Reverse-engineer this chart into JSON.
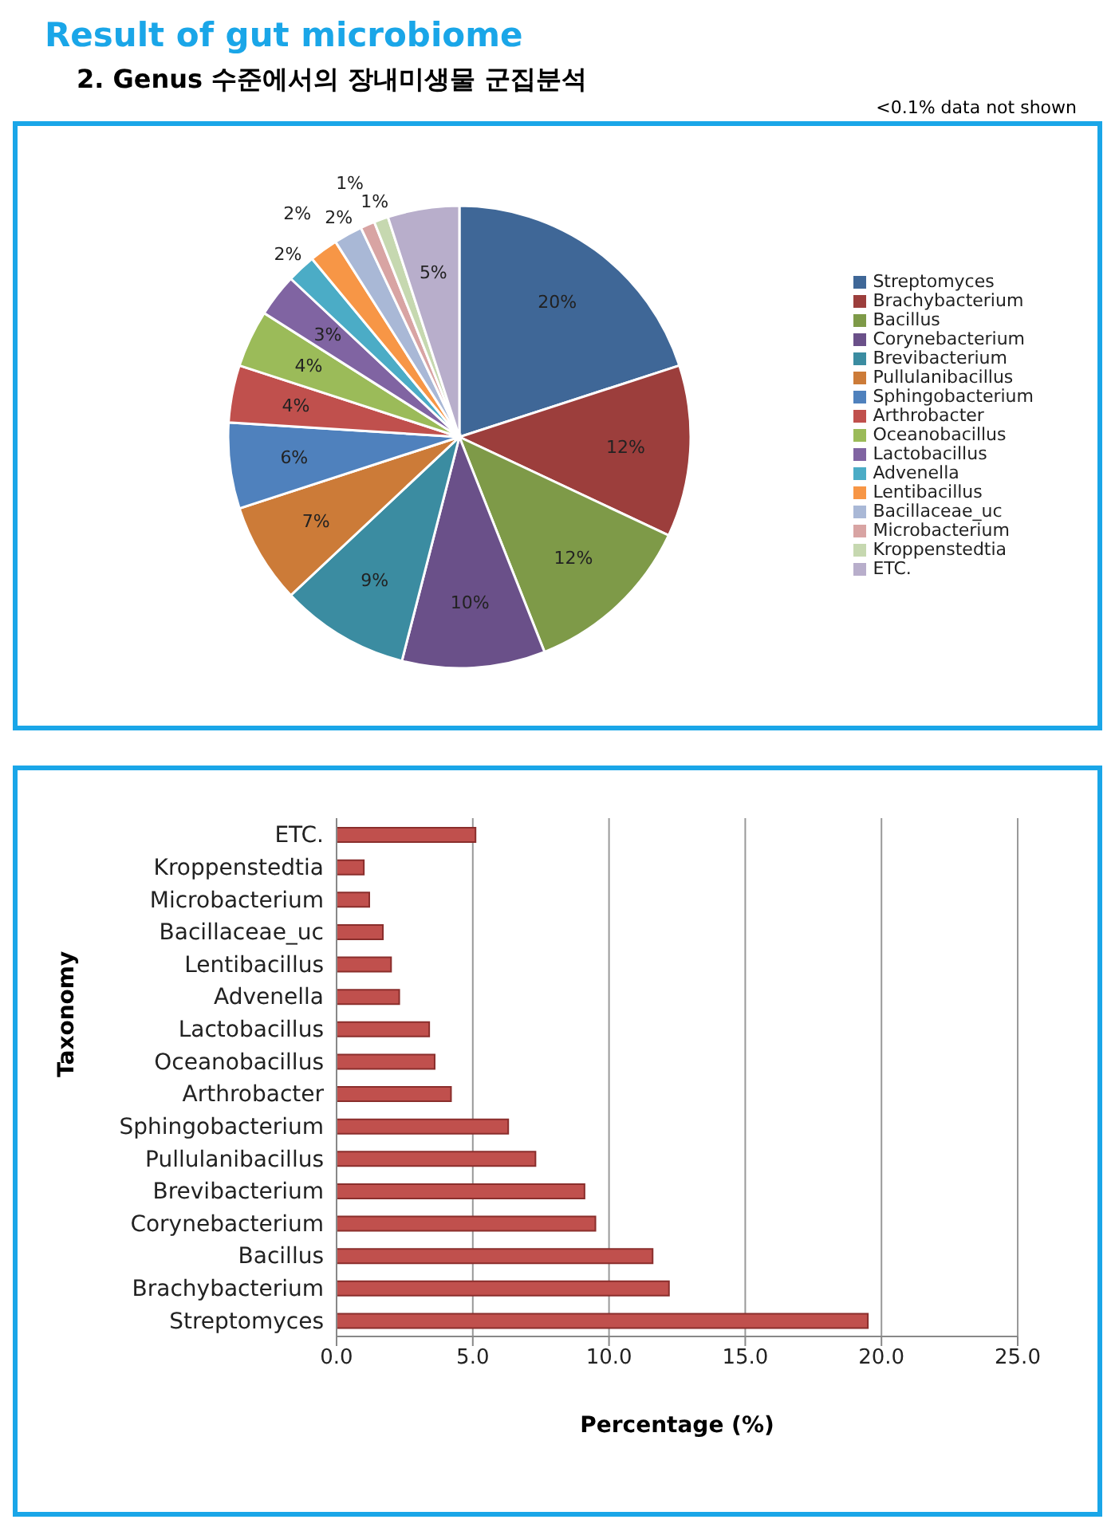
{
  "chart_data": [
    {
      "type": "pie",
      "title": "Result of gut microbiome",
      "subtitle": "2. Genus 수준에서의 장내미생물 군집분석",
      "annotations": [
        "<0.1% data not shown"
      ],
      "categories": [
        "Streptomyces",
        "Brachybacterium",
        "Bacillus",
        "Corynebacterium",
        "Brevibacterium",
        "Pullulanibacillus",
        "Sphingobacterium",
        "Arthrobacter",
        "Oceanobacillus",
        "Lactobacillus",
        "Advenella",
        "Lentibacillus",
        "Bacillaceae_uc",
        "Microbacterium",
        "Kroppenstedtia",
        "ETC."
      ],
      "values": [
        20,
        12,
        12,
        10,
        9,
        7,
        6,
        4,
        4,
        3,
        2,
        2,
        2,
        1,
        1,
        5
      ],
      "value_labels": [
        "20%",
        "12%",
        "12%",
        "10%",
        "9%",
        "7%",
        "6%",
        "4%",
        "4%",
        "3%",
        "2%",
        "2%",
        "2%",
        "1%",
        "1%",
        "5%"
      ],
      "colors": [
        "#3f6797",
        "#9c3e3c",
        "#7e9a48",
        "#6a5089",
        "#3b8ca1",
        "#cc7b38",
        "#4f81bd",
        "#c0504d",
        "#9bbb59",
        "#8064a2",
        "#4bacc6",
        "#f79646",
        "#a9b8d6",
        "#d8a4a3",
        "#c6d8b0",
        "#b8aecb"
      ],
      "legend": "right"
    },
    {
      "type": "bar",
      "orientation": "horizontal",
      "xlabel": "Percentage (%)",
      "ylabel": "Taxonomy",
      "categories": [
        "ETC.",
        "Kroppenstedtia",
        "Microbacterium",
        "Bacillaceae_uc",
        "Lentibacillus",
        "Advenella",
        "Lactobacillus",
        "Oceanobacillus",
        "Arthrobacter",
        "Sphingobacterium",
        "Pullulanibacillus",
        "Brevibacterium",
        "Corynebacterium",
        "Bacillus",
        "Brachybacterium",
        "Streptomyces"
      ],
      "values": [
        5.1,
        1.0,
        1.2,
        1.7,
        2.0,
        2.3,
        3.4,
        3.6,
        4.2,
        6.3,
        7.3,
        9.1,
        9.5,
        11.6,
        12.2,
        19.5
      ],
      "color": "#c0504d",
      "xlim": [
        0,
        25
      ],
      "xticks": [
        {
          "value": 0,
          "label": "0.0"
        },
        {
          "value": 5,
          "label": "5.0"
        },
        {
          "value": 10,
          "label": "10.0"
        },
        {
          "value": 15,
          "label": "15.0"
        },
        {
          "value": 20,
          "label": "20.0"
        },
        {
          "value": 25,
          "label": "25.0"
        }
      ],
      "grid": "x"
    }
  ]
}
